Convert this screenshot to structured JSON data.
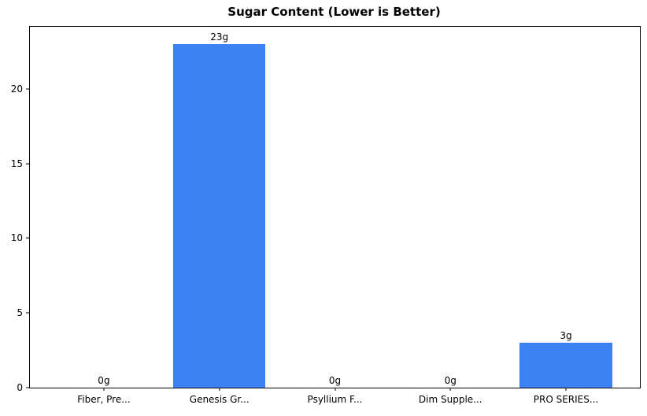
{
  "chart_data": {
    "type": "bar",
    "title": "Sugar Content (Lower is Better)",
    "categories": [
      "Fiber, Pre...",
      "Genesis Gr...",
      "Psyllium F...",
      "Dim Supple...",
      "PRO SERIES..."
    ],
    "values": [
      0,
      23,
      0,
      0,
      3
    ],
    "value_labels": [
      "0g",
      "23g",
      "0g",
      "0g",
      "3g"
    ],
    "xlabel": "",
    "ylabel": "",
    "ylim": [
      0,
      24.15
    ],
    "yticks": [
      0,
      5,
      10,
      15,
      20
    ],
    "bar_color": "#3d82f4",
    "axis_color": "#000000",
    "grid": false,
    "legend_position": "none"
  }
}
